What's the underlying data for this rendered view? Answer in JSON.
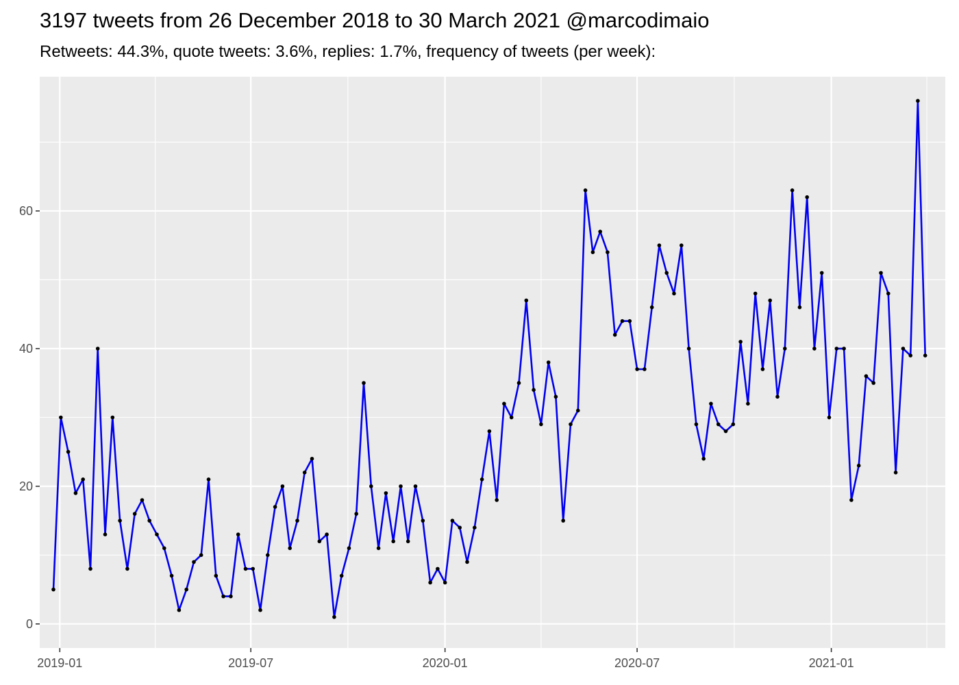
{
  "chart_data": {
    "type": "line",
    "title": "3197 tweets from 26 December 2018 to 30 March 2021 @marcodimaio",
    "subtitle": "Retweets: 44.3%, quote tweets: 3.6%, replies: 1.7%, frequency of tweets (per week):",
    "xlabel": "",
    "ylabel": "",
    "x_range": [
      "2018-12-13",
      "2021-04-19"
    ],
    "ylim": [
      -3.5,
      79.5
    ],
    "x_ticks": [
      {
        "date": "2019-01-01",
        "label": "2019-01"
      },
      {
        "date": "2019-07-01",
        "label": "2019-07"
      },
      {
        "date": "2020-01-01",
        "label": "2020-01"
      },
      {
        "date": "2020-07-01",
        "label": "2020-07"
      },
      {
        "date": "2021-01-01",
        "label": "2021-01"
      }
    ],
    "y_ticks": [
      0,
      20,
      40,
      60
    ],
    "grid": true,
    "colors": {
      "line": "#0000ee",
      "point": "#000000",
      "panel": "#ebebeb",
      "grid": "#ffffff"
    },
    "series": [
      {
        "start_date": "2018-12-26",
        "interval_days": 7,
        "values": [
          5,
          30,
          25,
          19,
          21,
          8,
          40,
          13,
          30,
          15,
          8,
          16,
          18,
          15,
          13,
          11,
          7,
          2,
          5,
          9,
          10,
          21,
          7,
          4,
          4,
          13,
          8,
          8,
          2,
          10,
          17,
          20,
          11,
          15,
          22,
          24,
          12,
          13,
          1,
          7,
          11,
          16,
          35,
          20,
          11,
          19,
          12,
          20,
          12,
          20,
          15,
          6,
          8,
          6,
          15,
          14,
          9,
          14,
          21,
          28,
          18,
          32,
          30,
          35,
          47,
          34,
          29,
          38,
          33,
          15,
          29,
          31,
          63,
          54,
          57,
          54,
          42,
          44,
          44,
          37,
          37,
          46,
          55,
          51,
          48,
          55,
          40,
          29,
          24,
          32,
          29,
          28,
          29,
          41,
          32,
          48,
          37,
          47,
          33,
          40,
          63,
          46,
          62,
          40,
          51,
          30,
          40,
          40,
          18,
          23,
          36,
          35,
          51,
          48,
          22,
          40,
          39,
          76,
          39
        ]
      }
    ]
  }
}
